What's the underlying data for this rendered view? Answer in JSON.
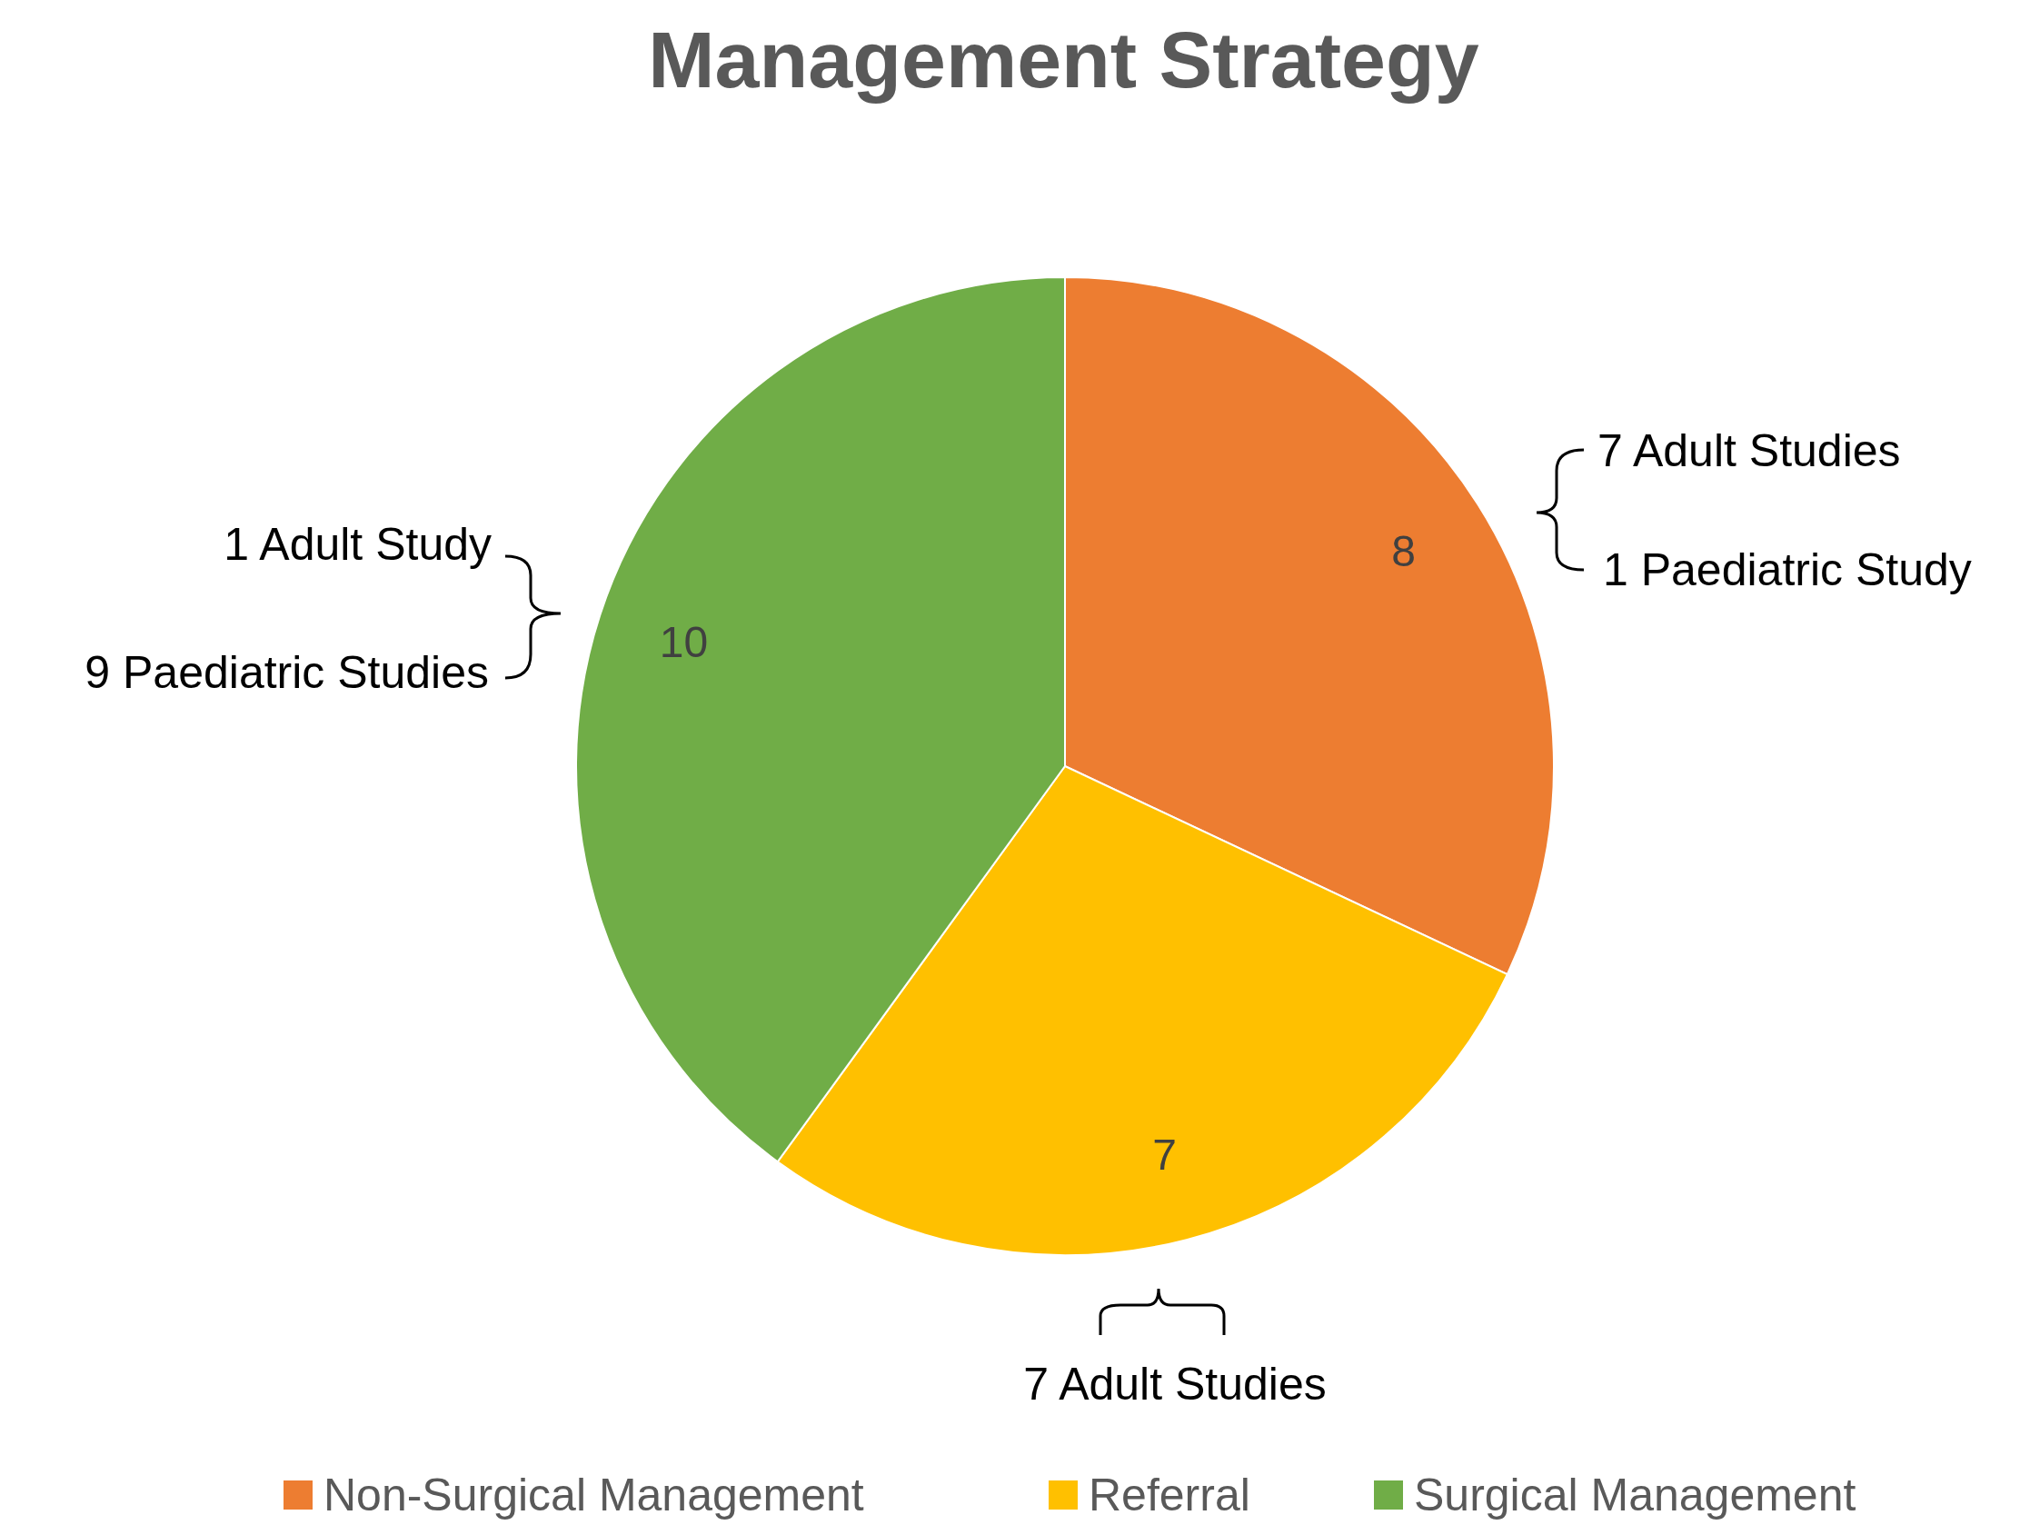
{
  "chart_data": {
    "type": "pie",
    "title": "Management Strategy",
    "categories": [
      "Non-Surgical Management",
      "Referral",
      "Surgical Management"
    ],
    "values": [
      8,
      7,
      10
    ],
    "colors": [
      "#ed7d31",
      "#ffc000",
      "#70ad47"
    ],
    "data_labels": true,
    "legend": "bottom",
    "annotations": [
      "7 Adult Studies",
      "1 Paediatric Study",
      "1 Adult Study",
      "9 Paediatric Studies",
      "7 Adult Studies"
    ]
  }
}
